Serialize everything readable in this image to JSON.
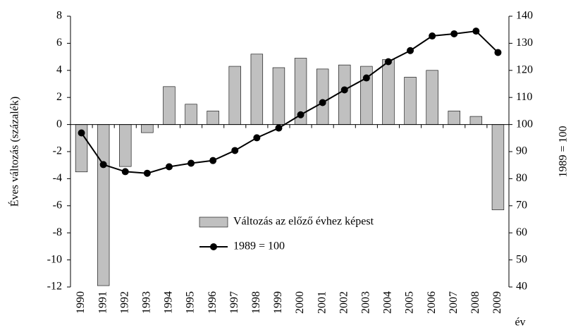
{
  "chart_data": {
    "type": "bar",
    "categories": [
      "1990",
      "1991",
      "1992",
      "1993",
      "1994",
      "1995",
      "1996",
      "1997",
      "1998",
      "1999",
      "2000",
      "2001",
      "2002",
      "2003",
      "2004",
      "2005",
      "2006",
      "2007",
      "2008",
      "2009"
    ],
    "x_label": "év",
    "y_label": "Éves változás (százalék)",
    "y2_label": "1989 = 100",
    "ylim": [
      -12,
      8
    ],
    "yticks": [
      -12,
      -10,
      -8,
      -6,
      -4,
      -2,
      0,
      2,
      4,
      6,
      8
    ],
    "y2lim": [
      40,
      140
    ],
    "y2ticks": [
      40,
      50,
      60,
      70,
      80,
      90,
      100,
      110,
      120,
      130,
      140
    ],
    "legend": "lower-center",
    "series": [
      {
        "name": "Változás az előző évhez képest",
        "type": "bar",
        "color": "#c0c0c0",
        "values": [
          -3.5,
          -11.9,
          -3.1,
          -0.6,
          2.8,
          1.5,
          1.0,
          4.3,
          5.2,
          4.2,
          4.9,
          4.1,
          4.4,
          4.3,
          4.8,
          3.5,
          4.0,
          1.0,
          0.6,
          -6.3
        ]
      },
      {
        "name": "1989 = 100",
        "type": "line",
        "axis": "y2",
        "color": "#000000",
        "values": [
          96.9,
          85.2,
          82.6,
          82.0,
          84.4,
          85.7,
          86.7,
          90.4,
          95.1,
          98.7,
          103.6,
          108.1,
          112.8,
          117.2,
          123.2,
          127.3,
          132.7,
          133.5,
          134.5,
          126.6
        ]
      }
    ]
  }
}
